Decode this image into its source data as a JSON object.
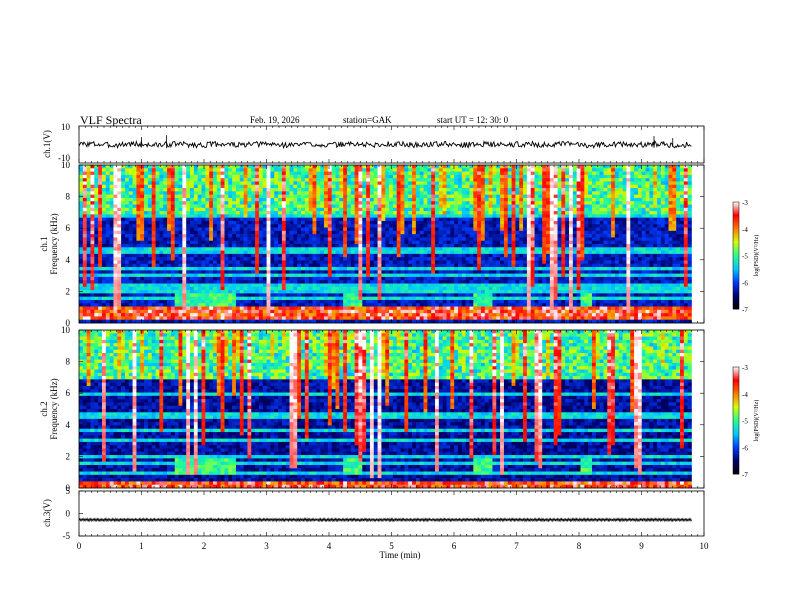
{
  "header": {
    "title": "VLF  Spectra",
    "date": "Feb. 19, 2026",
    "station": "station=GAK",
    "start": "start  UT  =    12: 30: 0"
  },
  "chart_data": [
    {
      "name": "ch1-waveform",
      "type": "line",
      "ylabel": "ch.1(V)",
      "ylim": [
        -10,
        10
      ],
      "yticks": [
        "10",
        "-10"
      ],
      "xlim": [
        0,
        10
      ],
      "x_end": 9.8,
      "series": [
        {
          "name": "ch.1",
          "baseline": 0,
          "noise_amplitude": 1.5
        }
      ]
    },
    {
      "name": "ch1-spectrogram",
      "type": "heatmap",
      "ylabel": "ch.1\nFrequency  (kHz)",
      "ylim": [
        0,
        10
      ],
      "yticks": [
        "0",
        "2",
        "4",
        "6",
        "8",
        "10"
      ],
      "xlim": [
        0,
        10
      ],
      "x_end": 9.8,
      "colorbar": {
        "label": "log(PSD)(V²/Hz)",
        "range": [
          -7,
          -3
        ],
        "ticks": [
          "-3",
          "-4",
          "-5",
          "-6",
          "-7"
        ]
      },
      "features": {
        "hum_band_khz": [
          0.2,
          1.0
        ],
        "noise_lines_khz": [
          1.0,
          1.6,
          2.0,
          2.3,
          3.0,
          3.4,
          4.6,
          6.8
        ],
        "quiet_level": -6.5,
        "seed": 7
      }
    },
    {
      "name": "ch2-spectrogram",
      "type": "heatmap",
      "ylabel": "ch.2\nFrequency  (kHz)",
      "ylim": [
        0,
        10
      ],
      "yticks": [
        "0",
        "2",
        "4",
        "6",
        "8",
        "10"
      ],
      "xlim": [
        0,
        10
      ],
      "x_end": 9.8,
      "colorbar": {
        "label": "log(PSD)(V²/Hz)",
        "range": [
          -7,
          -3
        ],
        "ticks": [
          "-3",
          "-4",
          "-5",
          "-6",
          "-7"
        ]
      },
      "features": {
        "hum_band_khz": [
          0.1,
          0.4
        ],
        "noise_lines_khz": [
          1.0,
          1.6,
          2.0,
          3.0,
          3.6,
          4.6,
          6.0
        ],
        "quiet_level": -6.6,
        "seed": 13
      }
    },
    {
      "name": "ch3-waveform",
      "type": "line",
      "ylabel": "ch.3(V)",
      "ylim": [
        -5,
        5
      ],
      "yticks": [
        "5",
        "0",
        "-5"
      ],
      "xlim": [
        0,
        10
      ],
      "x_end": 9.8,
      "series": [
        {
          "name": "ch.3",
          "baseline": -1.4,
          "noise_amplitude": 0.3
        }
      ]
    }
  ],
  "xaxis": {
    "label": "Time  (min)",
    "ticks": [
      "0",
      "1",
      "2",
      "3",
      "4",
      "5",
      "6",
      "7",
      "8",
      "9",
      "10"
    ]
  }
}
